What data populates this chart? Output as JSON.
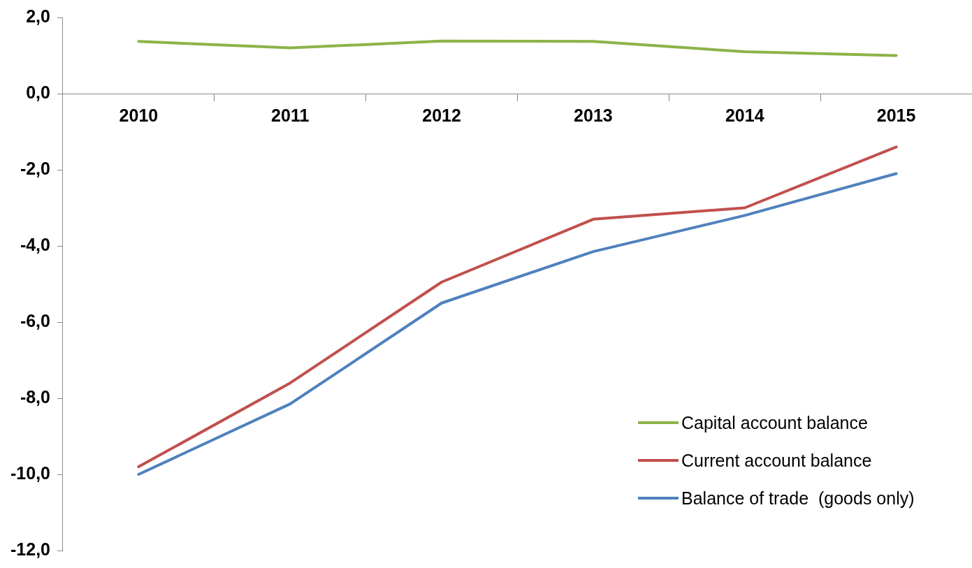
{
  "chart_data": {
    "type": "line",
    "categories": [
      "2010",
      "2011",
      "2012",
      "2013",
      "2014",
      "2015"
    ],
    "series": [
      {
        "name": "Capital account balance",
        "color": "#8db348",
        "values": [
          1.37,
          1.2,
          1.38,
          1.37,
          1.1,
          1.0
        ]
      },
      {
        "name": "Current account balance",
        "color": "#c0504d",
        "values": [
          -9.8,
          -7.6,
          -4.95,
          -3.3,
          -3.0,
          -1.4
        ]
      },
      {
        "name": "Balance of trade  (goods only)",
        "color": "#4f81bd",
        "values": [
          -10.0,
          -8.15,
          -5.5,
          -4.15,
          -3.2,
          -2.1
        ]
      }
    ],
    "ylim": [
      -12,
      2
    ],
    "yticks": [
      {
        "value": 2,
        "label": "2,0"
      },
      {
        "value": 0,
        "label": "0,0"
      },
      {
        "value": -2,
        "label": "-2,0"
      },
      {
        "value": -4,
        "label": "-4,0"
      },
      {
        "value": -6,
        "label": "-6,0"
      },
      {
        "value": -8,
        "label": "-8,0"
      },
      {
        "value": -10,
        "label": "-10,0"
      },
      {
        "value": -12,
        "label": "-12,0"
      }
    ],
    "grid": false,
    "legend": "bottom right",
    "marker": "none",
    "line_style": "solid"
  }
}
